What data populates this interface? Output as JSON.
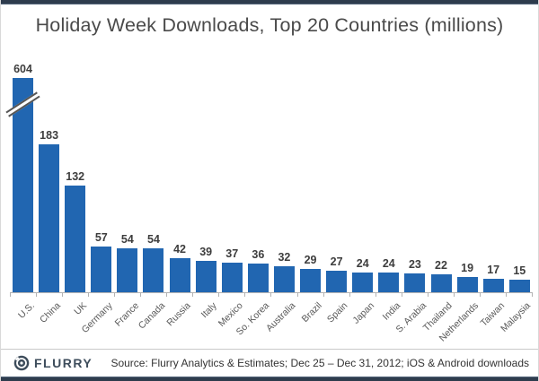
{
  "title": "Holiday Week Downloads, Top 20 Countries (millions)",
  "chart_data": {
    "type": "bar",
    "title": "Holiday Week Downloads, Top 20 Countries (millions)",
    "categories": [
      "U.S.",
      "China",
      "UK",
      "Germany",
      "France",
      "Canada",
      "Russia",
      "Italy",
      "Mexico",
      "So. Korea",
      "Australia",
      "Brazil",
      "Spain",
      "Japan",
      "India",
      "S. Arabia",
      "Thailand",
      "Netherlands",
      "Taiwan",
      "Malaysia"
    ],
    "values": [
      604,
      183,
      132,
      57,
      54,
      54,
      42,
      39,
      37,
      36,
      32,
      29,
      27,
      24,
      24,
      23,
      22,
      19,
      17,
      15
    ],
    "xlabel": "",
    "ylabel": "",
    "unit": "millions of downloads",
    "data_labels_shown": true,
    "grid": "off",
    "legend": "none",
    "bar_color": "#2166b1",
    "axis_break": {
      "category": "U.S.",
      "note": "tallest bar truncated with diagonal break marks"
    }
  },
  "frame": {
    "accent_dark": "#2e3c4d",
    "axis_color": "#b3b3b3"
  },
  "footer": {
    "brand": "FLURRY",
    "logo_icon": "flurry-concentric-circles-logo",
    "source": "Source: Flurry Analytics & Estimates; Dec 25 – Dec 31, 2012; iOS & Android downloads"
  }
}
